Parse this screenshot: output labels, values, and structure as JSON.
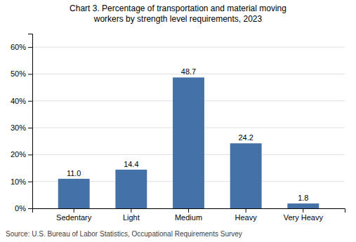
{
  "chart_data": {
    "type": "bar",
    "title": "Chart 3. Percentage of transportation and material moving\nworkers by strength level requirements, 2023",
    "categories": [
      "Sedentary",
      "Light",
      "Medium",
      "Heavy",
      "Very Heavy"
    ],
    "values": [
      11.0,
      14.4,
      48.7,
      24.2,
      1.8
    ],
    "value_labels": [
      "11.0",
      "14.4",
      "48.7",
      "24.2",
      "1.8"
    ],
    "color": "#4472a8",
    "ylim": [
      0,
      65
    ],
    "yticks": [
      {
        "value": 0,
        "label": "0%"
      },
      {
        "value": 10,
        "label": "10%"
      },
      {
        "value": 20,
        "label": "20%"
      },
      {
        "value": 30,
        "label": "30%"
      },
      {
        "value": 40,
        "label": "40%"
      },
      {
        "value": 50,
        "label": "50%"
      },
      {
        "value": 60,
        "label": "60%"
      }
    ],
    "grid": true,
    "data_labels": true,
    "source": "Source: U.S. Bureau of Labor Statistics, Occupational Requirements Survey"
  }
}
